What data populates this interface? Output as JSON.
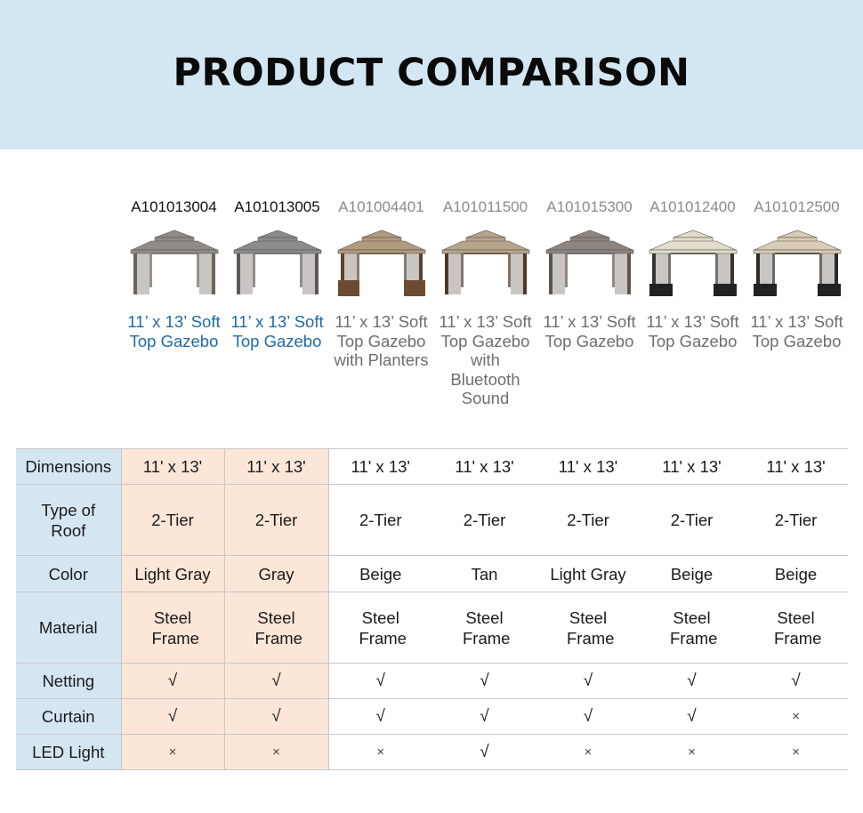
{
  "header": {
    "title": "PRODUCT COMPARISON"
  },
  "colors": {
    "banner_bg": "#d3e6f3",
    "label_bg": "#d5e6f3",
    "highlight_bg": "#fbe6d7",
    "featured_text": "#1f6aa7",
    "muted_text": "#6e6e6e"
  },
  "products": [
    {
      "sku": "A101013004",
      "name": "11’ x 13’ Soft Top Gazebo",
      "featured": true,
      "roof_color": "#8f8c88",
      "post_color": "#6b625a"
    },
    {
      "sku": "A101013005",
      "name": "11’ x 13’ Soft Top Gazebo",
      "featured": true,
      "roof_color": "#8c8b8b",
      "post_color": "#5e5a57"
    },
    {
      "sku": "A101004401",
      "name": "11’ x 13’ Soft Top Gazebo with Planters",
      "featured": false,
      "roof_color": "#b39a7c",
      "post_color": "#5a4330"
    },
    {
      "sku": "A101011500",
      "name": "11’ x 13’ Soft Top Gazebo with Bluetooth Sound",
      "featured": false,
      "roof_color": "#b8a48a",
      "post_color": "#4a3a2d"
    },
    {
      "sku": "A101015300",
      "name": "11’ x 13’ Soft Top Gazebo",
      "featured": false,
      "roof_color": "#8d857e",
      "post_color": "#5d554e"
    },
    {
      "sku": "A101012400",
      "name": "11’ x 13’ Soft Top Gazebo",
      "featured": false,
      "roof_color": "#e3dccb",
      "post_color": "#3b3530"
    },
    {
      "sku": "A101012500",
      "name": "11’ x 13’ Soft Top Gazebo",
      "featured": false,
      "roof_color": "#d9cbb4",
      "post_color": "#2e2a27"
    }
  ],
  "specs": [
    {
      "label": "Dimensions",
      "values": [
        "11' x 13'",
        "11' x 13'",
        "11' x 13'",
        "11' x 13'",
        "11' x 13'",
        "11' x 13'",
        "11' x 13'"
      ]
    },
    {
      "label": "Type of Roof",
      "values": [
        "2-Tier",
        "2-Tier",
        "2-Tier",
        "2-Tier",
        "2-Tier",
        "2-Tier",
        "2-Tier"
      ]
    },
    {
      "label": "Color",
      "values": [
        "Light Gray",
        "Gray",
        "Beige",
        "Tan",
        "Light Gray",
        "Beige",
        "Beige"
      ]
    },
    {
      "label": "Material",
      "values": [
        "Steel Frame",
        "Steel Frame",
        "Steel Frame",
        "Steel Frame",
        "Steel Frame",
        "Steel Frame",
        "Steel Frame"
      ]
    },
    {
      "label": "Netting",
      "values": [
        "√",
        "√",
        "√",
        "√",
        "√",
        "√",
        "√"
      ]
    },
    {
      "label": "Curtain",
      "values": [
        "√",
        "√",
        "√",
        "√",
        "√",
        "√",
        "×"
      ]
    },
    {
      "label": "LED Light",
      "values": [
        "×",
        "×",
        "×",
        "√",
        "×",
        "×",
        "×"
      ]
    }
  ]
}
